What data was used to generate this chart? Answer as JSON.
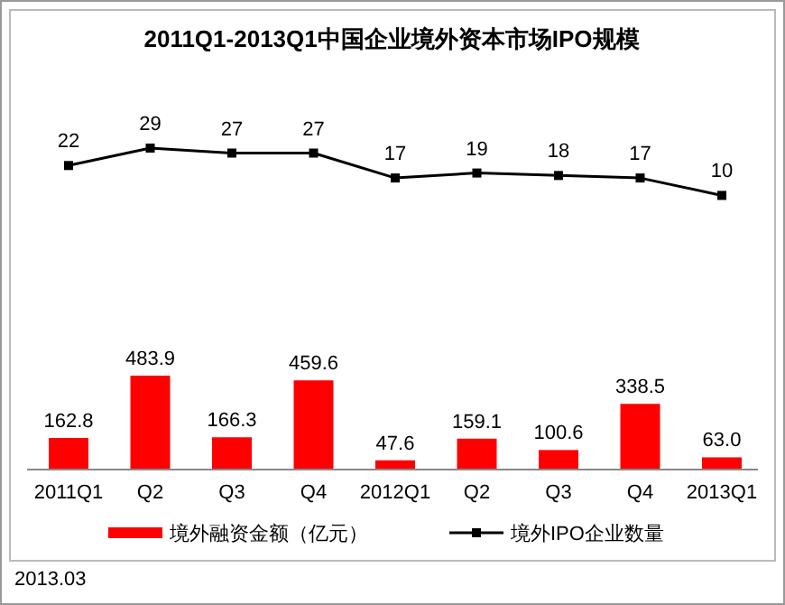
{
  "chart_data": [
    {
      "type": "line",
      "title": "2011Q1-2013Q1中国企业境外资本市场IPO规模",
      "categories": [
        null,
        null,
        null,
        null,
        null,
        null,
        null,
        null,
        null
      ],
      "series": [
        {
          "name": "境外IPO企业数量",
          "color": "#000000",
          "values": [
            22,
            29,
            27,
            27,
            17,
            19,
            18,
            17,
            10
          ]
        }
      ],
      "marker": "square",
      "data_labels": true,
      "legend": "bottom"
    },
    {
      "type": "bar",
      "categories": [
        "2011Q1",
        "Q2",
        "Q3",
        "Q4",
        "2012Q1",
        "Q2",
        "Q3",
        "Q4",
        "2013Q1"
      ],
      "series": [
        {
          "name": "境外融资金额（亿元）",
          "color": "#ff0000",
          "values": [
            162.8,
            483.9,
            166.3,
            459.6,
            47.6,
            159.1,
            100.6,
            338.5,
            63.0
          ],
          "value_labels": [
            "162.8",
            "483.9",
            "166.3",
            "459.6",
            "47.6",
            "159.1",
            "100.6",
            "338.5",
            "63.0"
          ]
        }
      ],
      "data_labels": true,
      "legend": "bottom",
      "annotations": [
        "2013.03"
      ]
    }
  ]
}
